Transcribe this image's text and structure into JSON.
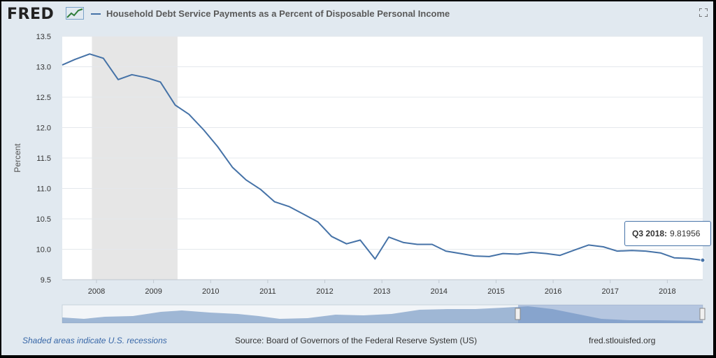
{
  "header": {
    "logo_text": "FRED",
    "title": "Household Debt Service Payments as a Percent of Disposable Personal Income",
    "series_color": "#4572a7"
  },
  "tooltip": {
    "label": "Q3 2018:",
    "value": "9.81956"
  },
  "footer": {
    "recession_note": "Shaded areas indicate U.S. recessions",
    "source": "Source: Board of Governors of the Federal Reserve System (US)",
    "site": "fred.stlouisfed.org"
  },
  "icons": {
    "logo_mark": "chart-line-icon",
    "fullscreen": "expand-icon"
  },
  "chart_data": {
    "type": "line",
    "title": "Household Debt Service Payments as a Percent of Disposable Personal Income",
    "xlabel": "",
    "ylabel": "Percent",
    "ylim": [
      9.5,
      13.5
    ],
    "xlim": [
      2007.4,
      2018.62
    ],
    "yticks": [
      "9.5",
      "10.0",
      "10.5",
      "11.0",
      "11.5",
      "12.0",
      "12.5",
      "13.0",
      "13.5"
    ],
    "xticks": [
      "2008",
      "2009",
      "2010",
      "2011",
      "2012",
      "2013",
      "2014",
      "2015",
      "2016",
      "2017",
      "2018"
    ],
    "recessions": [
      [
        2007.92,
        2009.42
      ]
    ],
    "grid": true,
    "legend": "top-left",
    "series": [
      {
        "name": "Household Debt Service Payments as a Percent of Disposable Personal Income",
        "color": "#4572a7",
        "x": [
          2007.4,
          2007.62,
          2007.88,
          2008.12,
          2008.38,
          2008.62,
          2008.88,
          2009.12,
          2009.38,
          2009.62,
          2009.88,
          2010.12,
          2010.38,
          2010.62,
          2010.88,
          2011.12,
          2011.38,
          2011.62,
          2011.88,
          2012.12,
          2012.38,
          2012.62,
          2012.88,
          2013.12,
          2013.38,
          2013.62,
          2013.88,
          2014.12,
          2014.38,
          2014.62,
          2014.88,
          2015.12,
          2015.38,
          2015.62,
          2015.88,
          2016.12,
          2016.38,
          2016.62,
          2016.88,
          2017.12,
          2017.38,
          2017.62,
          2017.88,
          2018.12,
          2018.38,
          2018.62
        ],
        "y": [
          13.03,
          13.12,
          13.21,
          13.14,
          12.79,
          12.87,
          12.82,
          12.75,
          12.37,
          12.22,
          11.96,
          11.69,
          11.35,
          11.14,
          10.98,
          10.78,
          10.7,
          10.58,
          10.45,
          10.21,
          10.09,
          10.15,
          9.84,
          10.2,
          10.11,
          10.08,
          10.08,
          9.97,
          9.93,
          9.89,
          9.88,
          9.93,
          9.92,
          9.95,
          9.93,
          9.9,
          9.99,
          10.07,
          10.04,
          9.97,
          9.98,
          9.97,
          9.94,
          9.86,
          9.85,
          9.82
        ]
      }
    ]
  }
}
